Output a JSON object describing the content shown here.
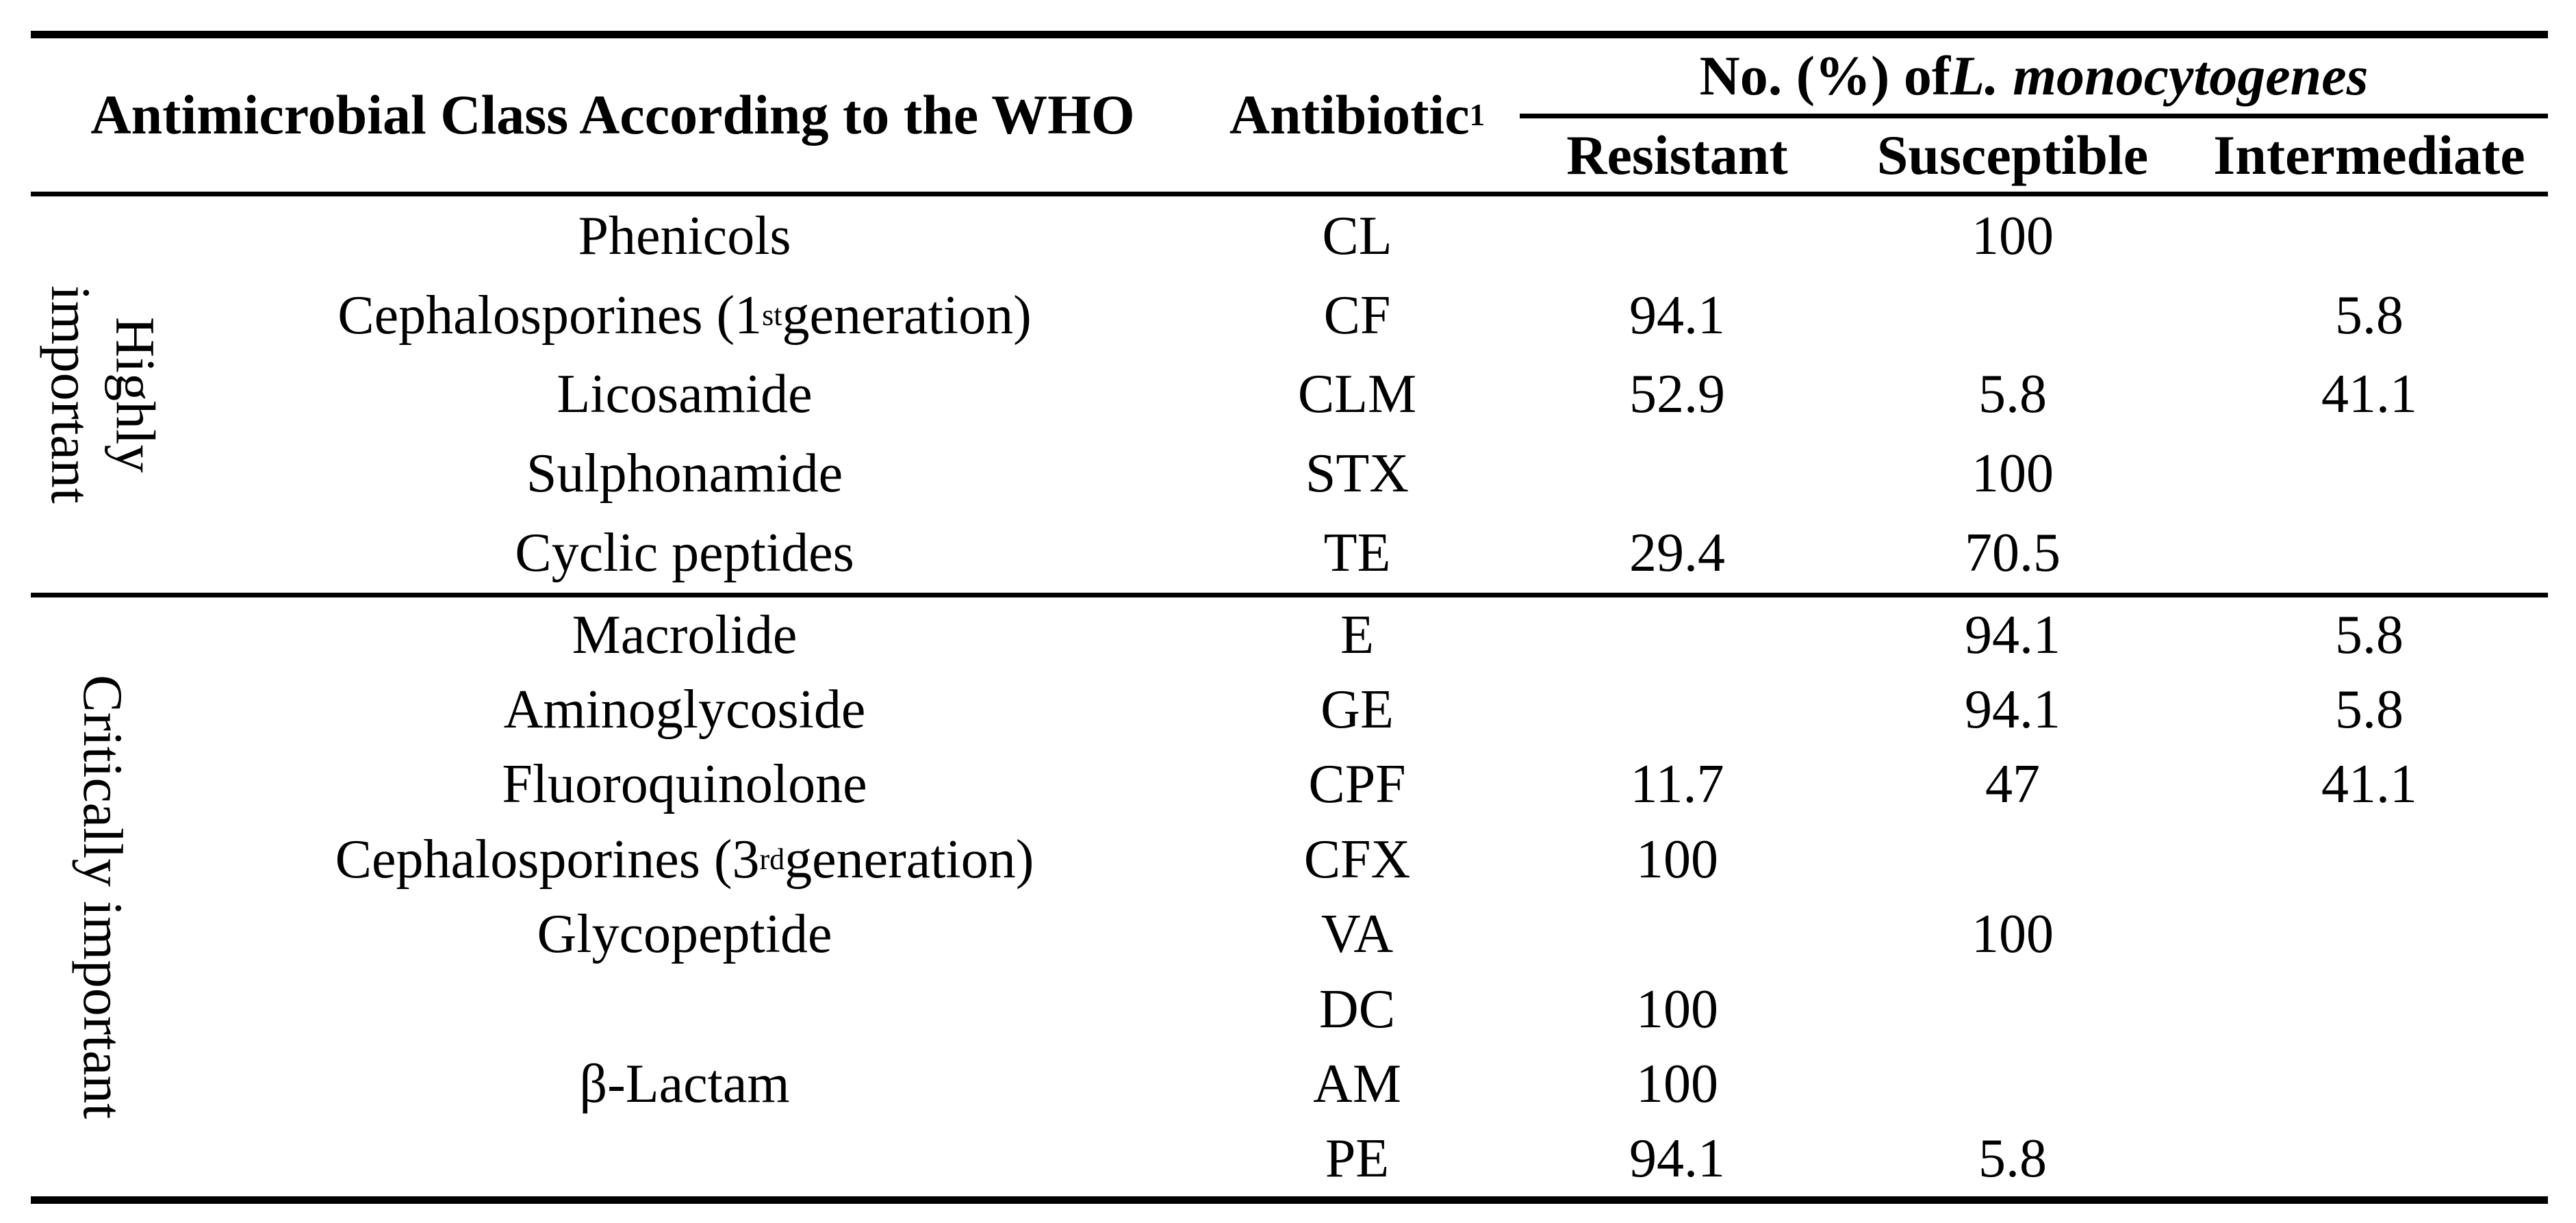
{
  "header": {
    "class_col": "Antimicrobial Class According to the WHO",
    "antibiotic_col": "Antibiotic",
    "antibiotic_sup": "1",
    "group_col_prefix": "No. (%) of ",
    "group_col_species": "L. monocytogenes",
    "sub_cols": [
      "Resistant",
      "Susceptible",
      "Intermediate"
    ]
  },
  "sections": [
    {
      "label": "Highly important",
      "rows": [
        {
          "class_main": "Phenicols",
          "antibiotic": "CL",
          "resistant": "",
          "susceptible": "100",
          "intermediate": ""
        },
        {
          "class_main": "Cephalosporines (1",
          "class_sup": "st",
          "class_rest": " generation)",
          "antibiotic": "CF",
          "resistant": "94.1",
          "susceptible": "",
          "intermediate": "5.8"
        },
        {
          "class_main": "Licosamide",
          "antibiotic": "CLM",
          "resistant": "52.9",
          "susceptible": "5.8",
          "intermediate": "41.1"
        },
        {
          "class_main": "Sulphonamide",
          "antibiotic": "STX",
          "resistant": "",
          "susceptible": "100",
          "intermediate": ""
        },
        {
          "class_main": "Cyclic peptides",
          "antibiotic": "TE",
          "resistant": "29.4",
          "susceptible": "70.5",
          "intermediate": ""
        }
      ]
    },
    {
      "label": "Critically important",
      "rows": [
        {
          "class_main": "Macrolide",
          "antibiotic": "E",
          "resistant": "",
          "susceptible": "94.1",
          "intermediate": "5.8"
        },
        {
          "class_main": "Aminoglycoside",
          "antibiotic": "GE",
          "resistant": "",
          "susceptible": "94.1",
          "intermediate": "5.8"
        },
        {
          "class_main": "Fluoroquinolone",
          "antibiotic": "CPF",
          "resistant": "11.7",
          "susceptible": "47",
          "intermediate": "41.1"
        },
        {
          "class_main": "Cephalosporines (3",
          "class_sup": "rd",
          "class_rest": " generation)",
          "antibiotic": "CFX",
          "resistant": "100",
          "susceptible": "",
          "intermediate": ""
        },
        {
          "class_main": "Glycopeptide",
          "antibiotic": "VA",
          "resistant": "",
          "susceptible": "100",
          "intermediate": ""
        },
        {
          "class_main": "",
          "antibiotic": "DC",
          "resistant": "100",
          "susceptible": "",
          "intermediate": ""
        },
        {
          "class_main": "β-Lactam",
          "antibiotic": "AM",
          "resistant": "100",
          "susceptible": "",
          "intermediate": ""
        },
        {
          "class_main": "",
          "antibiotic": "PE",
          "resistant": "94.1",
          "susceptible": "5.8",
          "intermediate": ""
        }
      ]
    }
  ]
}
